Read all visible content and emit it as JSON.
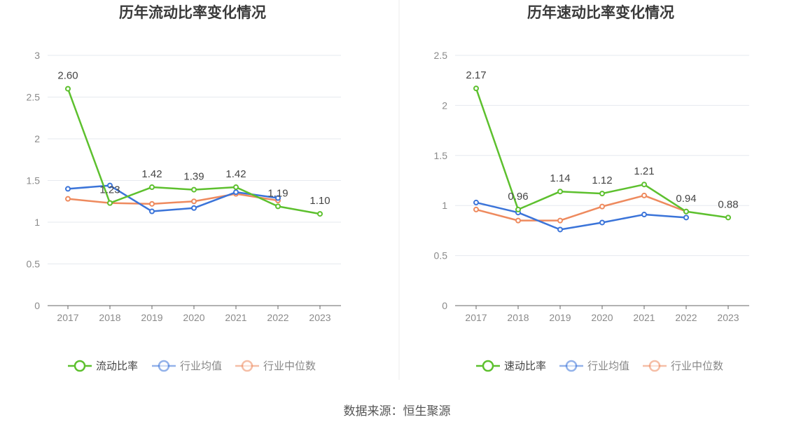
{
  "footer": {
    "source": "数据来源：恒生聚源"
  },
  "colors": {
    "primary": "#5dc02e",
    "avg": "#3b74d9",
    "median": "#ee8a5e",
    "grid": "#e6e9ef",
    "axis": "#666666"
  },
  "chart_data": [
    {
      "type": "line",
      "title": "历年流动比率变化情况",
      "xlabel": "",
      "ylabel": "",
      "categories": [
        "2017",
        "2018",
        "2019",
        "2020",
        "2021",
        "2022",
        "2023"
      ],
      "ylim": [
        0,
        3
      ],
      "yticks": [
        0,
        0.5,
        1,
        1.5,
        2,
        2.5,
        3
      ],
      "ytick_labels": [
        "0",
        "0.5",
        "1",
        "1.5",
        "2",
        "2.5",
        "3"
      ],
      "grid": true,
      "legend_position": "bottom",
      "series": [
        {
          "name": "流动比率",
          "color": "#5dc02e",
          "values": [
            2.6,
            1.23,
            1.42,
            1.39,
            1.42,
            1.19,
            1.1
          ],
          "labels": [
            "2.60",
            "1.23",
            "1.42",
            "1.39",
            "1.42",
            "1.19",
            "1.10"
          ]
        },
        {
          "name": "行业均值",
          "color": "#3b74d9",
          "values": [
            1.4,
            1.44,
            1.13,
            1.17,
            1.36,
            1.29,
            null
          ]
        },
        {
          "name": "行业中位数",
          "color": "#ee8a5e",
          "values": [
            1.28,
            1.23,
            1.22,
            1.25,
            1.34,
            1.26,
            null
          ]
        }
      ]
    },
    {
      "type": "line",
      "title": "历年速动比率变化情况",
      "xlabel": "",
      "ylabel": "",
      "categories": [
        "2017",
        "2018",
        "2019",
        "2020",
        "2021",
        "2022",
        "2023"
      ],
      "ylim": [
        0,
        2.5
      ],
      "yticks": [
        0,
        0.5,
        1,
        1.5,
        2,
        2.5
      ],
      "ytick_labels": [
        "0",
        "0.5",
        "1",
        "1.5",
        "2",
        "2.5"
      ],
      "grid": true,
      "legend_position": "bottom",
      "series": [
        {
          "name": "速动比率",
          "color": "#5dc02e",
          "values": [
            2.17,
            0.96,
            1.14,
            1.12,
            1.21,
            0.94,
            0.88
          ],
          "labels": [
            "2.17",
            "0.96",
            "1.14",
            "1.12",
            "1.21",
            "0.94",
            "0.88"
          ]
        },
        {
          "name": "行业均值",
          "color": "#3b74d9",
          "values": [
            1.03,
            0.93,
            0.76,
            0.83,
            0.91,
            0.88,
            null
          ]
        },
        {
          "name": "行业中位数",
          "color": "#ee8a5e",
          "values": [
            0.96,
            0.85,
            0.85,
            0.99,
            1.1,
            0.94,
            null
          ]
        }
      ]
    }
  ]
}
